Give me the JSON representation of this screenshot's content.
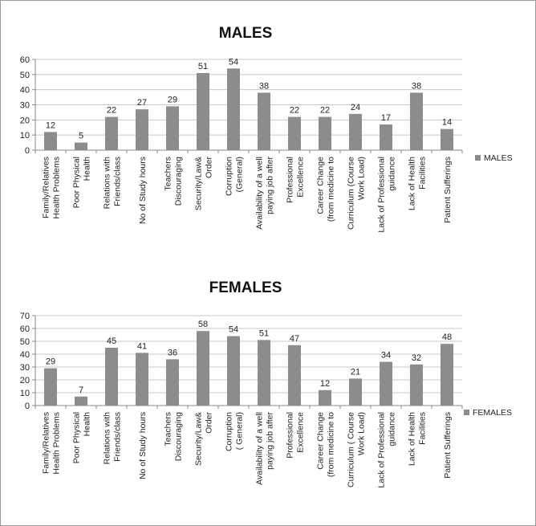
{
  "chart_data": [
    {
      "type": "bar",
      "title": "MALES",
      "categories": [
        [
          "Family/Relatives",
          "Health Problems"
        ],
        [
          "Poor Physical",
          "Health"
        ],
        [
          "Relations with",
          "Friends/class"
        ],
        [
          "No of Study hours"
        ],
        [
          "Teachers",
          "Discouraging"
        ],
        [
          "Security/Law&",
          "Order"
        ],
        [
          "Corruption",
          "(General)"
        ],
        [
          "Availability of a well",
          "paying job after"
        ],
        [
          "Professional",
          "Excellence"
        ],
        [
          "Career Change",
          "(from medicine to"
        ],
        [
          "Curriculum (Course",
          "Work Load)"
        ],
        [
          "Lack of Professional",
          "guidance"
        ],
        [
          "Lack of Health",
          "Facilities"
        ],
        [
          "Patient Sufferings"
        ]
      ],
      "series": [
        {
          "name": "MALES",
          "values": [
            12,
            5,
            22,
            27,
            29,
            51,
            54,
            38,
            22,
            22,
            24,
            17,
            38,
            14
          ]
        }
      ],
      "ylim": [
        0,
        60
      ],
      "yticks": [
        0,
        10,
        20,
        30,
        40,
        50,
        60
      ],
      "grid": true,
      "legend_position": "right",
      "bar_color": "#8c8c8c"
    },
    {
      "type": "bar",
      "title": "FEMALES",
      "categories": [
        [
          "Family/Relatives",
          "Health Problems"
        ],
        [
          "Poor Physical",
          "Health"
        ],
        [
          "Relations with",
          "Friends/class"
        ],
        [
          "No of Study hours"
        ],
        [
          "Teachers",
          "Discouraging"
        ],
        [
          "Security/Law&",
          "Order"
        ],
        [
          "Corruption",
          "( General)"
        ],
        [
          "Availability of a well",
          "paying job after"
        ],
        [
          "Professional",
          "Excellence"
        ],
        [
          "Career Change",
          "(from medicine to"
        ],
        [
          "Curriculum ( Course",
          "Work Load)"
        ],
        [
          "Lack of Professional",
          "guidance"
        ],
        [
          "Lack of Health",
          "Facilities"
        ],
        [
          "Patient Sufferings"
        ]
      ],
      "series": [
        {
          "name": "FEMALES",
          "values": [
            29,
            7,
            45,
            41,
            36,
            58,
            54,
            51,
            47,
            12,
            21,
            34,
            32,
            48
          ]
        }
      ],
      "ylim": [
        0,
        70
      ],
      "yticks": [
        0,
        10,
        20,
        30,
        40,
        50,
        60,
        70
      ],
      "grid": true,
      "legend_position": "right",
      "bar_color": "#8c8c8c"
    }
  ]
}
